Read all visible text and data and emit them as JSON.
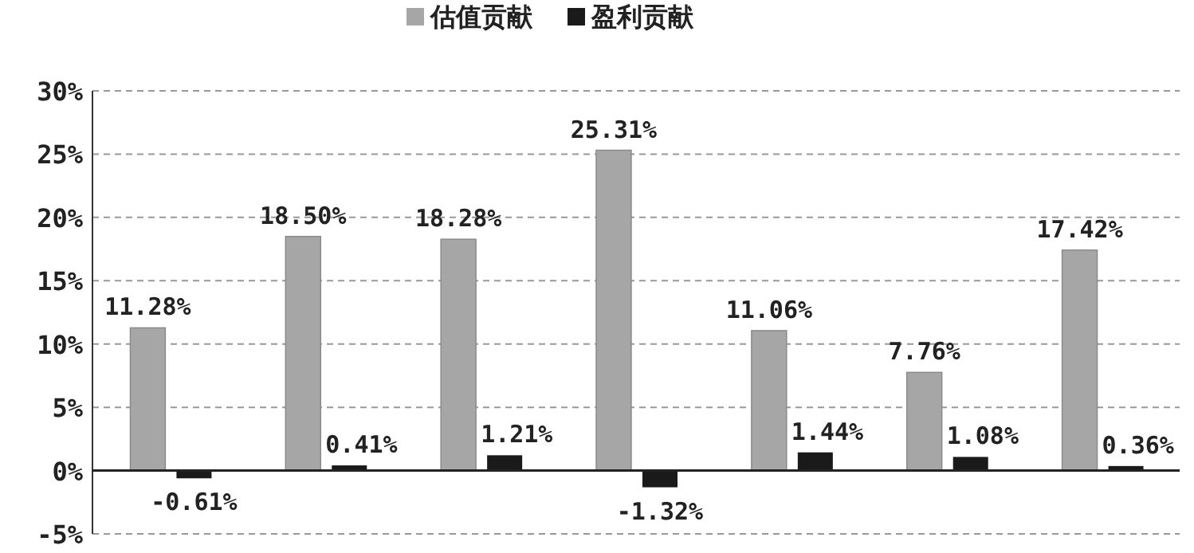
{
  "chart_data": {
    "type": "bar",
    "categories": [
      null,
      null,
      null,
      null,
      null,
      null,
      null
    ],
    "series": [
      {
        "name": "估值贡献",
        "color": "#a6a6a6",
        "values": [
          11.28,
          18.5,
          18.28,
          25.31,
          11.06,
          7.76,
          17.42
        ],
        "value_labels": [
          "11.28%",
          "18.50%",
          "18.28%",
          "25.31%",
          "11.06%",
          "7.76%",
          "17.42%"
        ]
      },
      {
        "name": "盈利贡献",
        "color": "#1a1a1a",
        "values": [
          -0.61,
          0.41,
          1.21,
          -1.32,
          1.44,
          1.08,
          0.36
        ],
        "value_labels": [
          "-0.61%",
          "0.41%",
          "1.21%",
          "-1.32%",
          "1.44%",
          "1.08%",
          "0.36%"
        ]
      }
    ],
    "ylim": [
      -5,
      30
    ],
    "yticks": [
      {
        "value": -5,
        "label": "-5%"
      },
      {
        "value": 0,
        "label": "0%"
      },
      {
        "value": 5,
        "label": "5%"
      },
      {
        "value": 10,
        "label": "10%"
      },
      {
        "value": 15,
        "label": "15%"
      },
      {
        "value": 20,
        "label": "20%"
      },
      {
        "value": 25,
        "label": "25%"
      },
      {
        "value": 30,
        "label": "30%"
      }
    ],
    "grid": "y",
    "legend": "top"
  }
}
